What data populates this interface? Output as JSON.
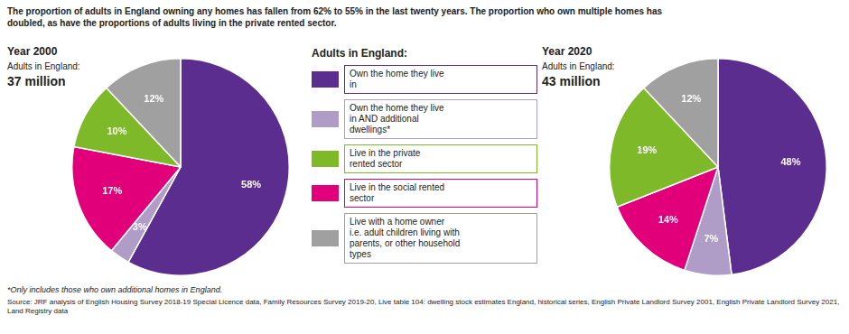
{
  "title": "The proportion of adults in England owning any homes has fallen from 62% to 55% in the last twenty years. The proportion who own multiple homes has\ndoubled, as have the proportions of adults living in the private rented sector.",
  "annotations": [
    "*Only includes those who own additional homes in England.",
    "Source: JRF analysis of English Housing Survey 2018-19 Special Licence data, Family Resources Survey 2019-20, Live table 104: dwelling stock estimates England, historical series, English Private Landlord Survey 2001, English Private Landlord Survey 2021, Land Registry data"
  ],
  "legend_title": "Adults in England:",
  "legend_items": [
    {
      "name": "Own the home they live\nin",
      "color": "#5b2d8e"
    },
    {
      "name": "Own the home they live\nin AND additional\ndwellings*",
      "color": "#b09dc7"
    },
    {
      "name": "Live in the private\nrented sector",
      "color": "#7db928"
    },
    {
      "name": "Live in the social rented\nsector",
      "color": "#e2007a"
    },
    {
      "name": "Live with a home owner\ni.e. adult children living with\nparents, or other household\ntypes",
      "color": "#a0a0a0"
    }
  ],
  "chart_data": [
    {
      "type": "pie",
      "title": "Year 2000",
      "annotations": [
        "Adults in England:",
        "37 million"
      ],
      "categories": [
        "Own the home they live\nin",
        "Own the home they live\nin AND additional\ndwellings*",
        "Live in the social rented\nsector",
        "Live in the private\nrented sector",
        "Live with a home owner\ni.e. adult children living with\nparents, or other household\ntypes"
      ],
      "values": [
        58,
        3,
        17,
        10,
        12
      ],
      "value_labels": [
        "58%",
        "3%",
        "17%",
        "10%",
        "12%"
      ],
      "colors": [
        "#5b2d8e",
        "#b09dc7",
        "#e2007a",
        "#7db928",
        "#a0a0a0"
      ],
      "data_labels": true
    },
    {
      "type": "pie",
      "title": "Year 2020",
      "annotations": [
        "Adults in England:",
        "43 million"
      ],
      "categories": [
        "Own the home they live\nin",
        "Own the home they live\nin AND additional\ndwellings*",
        "Live in the social rented\nsector",
        "Live in the private\nrented sector",
        "Live with a home owner\ni.e. adult children living with\nparents, or other household\ntypes"
      ],
      "values": [
        48,
        7,
        14,
        19,
        12
      ],
      "value_labels": [
        "48%",
        "7%",
        "14%",
        "19%",
        "12%"
      ],
      "colors": [
        "#5b2d8e",
        "#b09dc7",
        "#e2007a",
        "#7db928",
        "#a0a0a0"
      ],
      "data_labels": true
    }
  ]
}
